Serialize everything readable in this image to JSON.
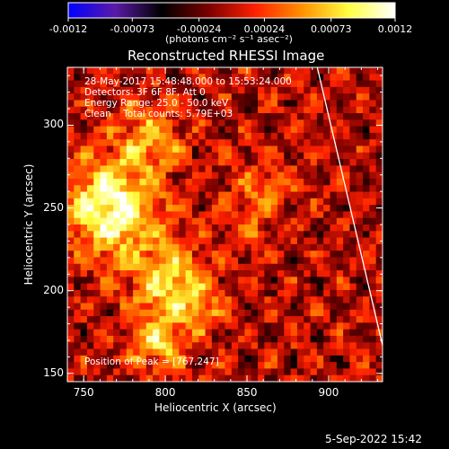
{
  "colorbar": {
    "tick_labels": [
      "-0.0012",
      "-0.00073",
      "-0.00024",
      "0.00024",
      "0.00073",
      "0.0012"
    ],
    "ticks": [
      -0.0012,
      -0.00073,
      -0.00024,
      0.00024,
      0.00073,
      0.0012
    ],
    "range": [
      -0.0012,
      0.0012
    ],
    "colormap": [
      "#0000ff",
      "#5a1aa8",
      "#000000",
      "#7a0000",
      "#ff2000",
      "#ff9000",
      "#ffff40",
      "#ffffff"
    ],
    "units_label": "(photons cm⁻² s⁻¹ asec⁻²)"
  },
  "chart_data": {
    "type": "heatmap",
    "title": "Reconstructed RHESSI Image",
    "xlabel": "Heliocentric X (arcsec)",
    "ylabel": "Heliocentric Y (arcsec)",
    "xlim": [
      740,
      933
    ],
    "ylim": [
      145,
      335
    ],
    "x_ticks": [
      750,
      800,
      850,
      900
    ],
    "y_ticks": [
      150,
      200,
      250,
      300
    ],
    "x_tick_labels": [
      "750",
      "800",
      "850",
      "900"
    ],
    "y_tick_labels": [
      "150",
      "200",
      "250",
      "300"
    ],
    "annotations": [
      "28-May-2017 15:48:48.000 to 15:53:24.000",
      "Detectors: 3F 6F 8F, Att 0",
      "Energy Range: 25.0 - 50.0 keV",
      "Clean    Total counts: 5.79E+03"
    ],
    "peak_label": "Position of Peak = [767,247]",
    "peak": [
      767,
      247
    ],
    "sources": [
      {
        "x": 767,
        "y": 250,
        "amp": 0.00115,
        "sigma": 20
      },
      {
        "x": 790,
        "y": 292,
        "amp": 0.0006,
        "sigma": 14
      },
      {
        "x": 802,
        "y": 205,
        "amp": 0.0008,
        "sigma": 16
      },
      {
        "x": 795,
        "y": 168,
        "amp": 0.0007,
        "sigma": 12
      },
      {
        "x": 822,
        "y": 190,
        "amp": 0.0004,
        "sigma": 10
      },
      {
        "x": 860,
        "y": 262,
        "amp": 0.00045,
        "sigma": 12
      },
      {
        "x": 850,
        "y": 235,
        "amp": 0.0003,
        "sigma": 10
      }
    ],
    "limb_points": [
      [
        893,
        335
      ],
      [
        933,
        167
      ]
    ]
  },
  "footer": {
    "date": "5-Sep-2022 15:42"
  }
}
